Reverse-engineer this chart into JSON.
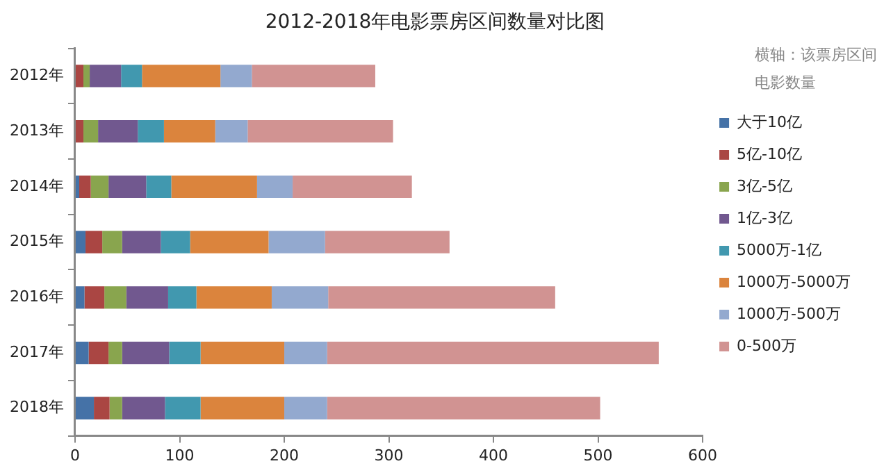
{
  "chart_data": {
    "type": "bar",
    "orientation": "horizontal",
    "stacked": true,
    "title": "2012-2018年电影票房区间数量对比图",
    "annotations": [
      "横轴：该票房区间电影数量"
    ],
    "categories": [
      "2012年",
      "2013年",
      "2014年",
      "2015年",
      "2016年",
      "2017年",
      "2018年"
    ],
    "series": [
      {
        "name": "大于10亿",
        "color": "#4572a7",
        "values": [
          null,
          null,
          4,
          10,
          9,
          13,
          18
        ]
      },
      {
        "name": "5亿-10亿",
        "color": "#aa4643",
        "values": [
          8,
          8,
          11,
          16,
          19,
          19,
          15
        ]
      },
      {
        "name": "3亿-5亿",
        "color": "#89a54e",
        "values": [
          6,
          14,
          17,
          19,
          21,
          13,
          12
        ]
      },
      {
        "name": "1亿-3亿",
        "color": "#71588f",
        "values": [
          30,
          38,
          36,
          37,
          40,
          45,
          41
        ]
      },
      {
        "name": "5000万-1亿",
        "color": "#4198af",
        "values": [
          20,
          25,
          24,
          28,
          27,
          30,
          34
        ]
      },
      {
        "name": "1000万-5000万",
        "color": "#db843d",
        "values": [
          75,
          49,
          82,
          75,
          72,
          80,
          80
        ]
      },
      {
        "name": "1000万-500万",
        "color": "#93a9cf",
        "values": [
          30,
          31,
          34,
          54,
          54,
          41,
          41
        ]
      },
      {
        "name": "0-500万",
        "color": "#d19392",
        "values": [
          118,
          139,
          114,
          119,
          217,
          317,
          261
        ]
      }
    ],
    "xlim": [
      0,
      600
    ],
    "xticks": [
      0,
      100,
      200,
      300,
      400,
      500,
      600
    ],
    "legend": "right",
    "grid": false
  }
}
